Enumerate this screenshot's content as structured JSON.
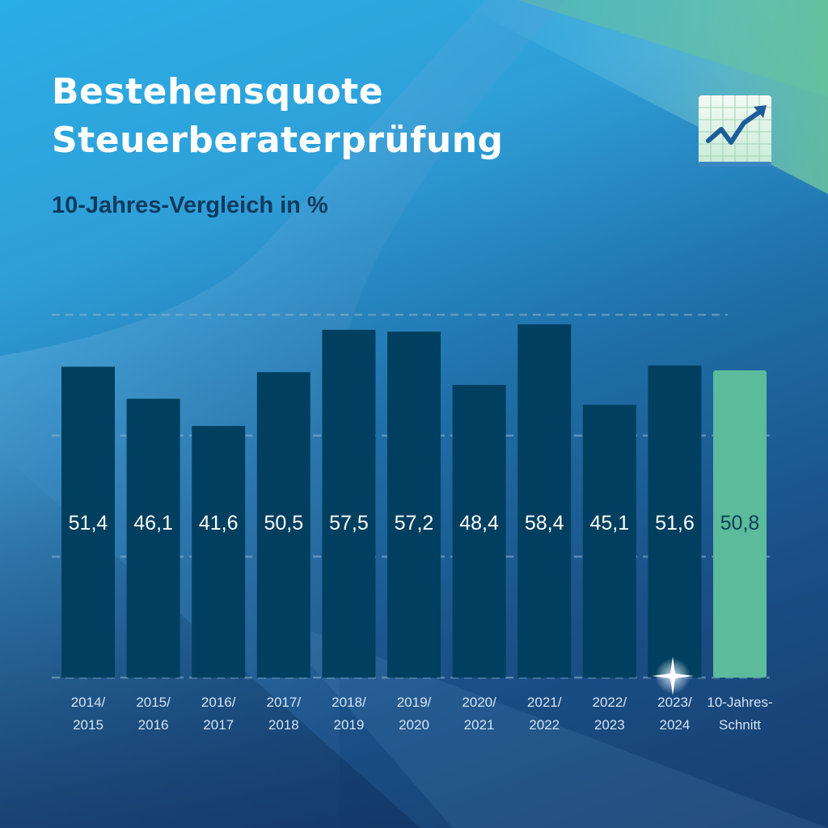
{
  "title_lines": [
    "Bestehensquote",
    "Steuerberaterprüfung"
  ],
  "subtitle": "10-Jahres-Vergleich in %",
  "icon": "trending-chart-icon",
  "colors": {
    "bar": "#003f5f",
    "average_bar": "#5bbb9b",
    "value_label": "#ffffff",
    "average_label": "#0b3d5a",
    "gridline": "#8fb3cf"
  },
  "chart_data": {
    "type": "bar",
    "categories": [
      [
        "2014/",
        "2015"
      ],
      [
        "2015/",
        "2016"
      ],
      [
        "2016/",
        "2017"
      ],
      [
        "2017/",
        "2018"
      ],
      [
        "2018/",
        "2019"
      ],
      [
        "2019/",
        "2020"
      ],
      [
        "2020/",
        "2021"
      ],
      [
        "2021/",
        "2022"
      ],
      [
        "2022/",
        "2023"
      ],
      [
        "2023/",
        "2024"
      ],
      [
        "10-Jahres-",
        "Schnitt"
      ]
    ],
    "values": [
      51.4,
      46.1,
      41.6,
      50.5,
      57.5,
      57.2,
      48.4,
      58.4,
      45.1,
      51.6,
      50.8
    ],
    "value_labels": [
      "51,4",
      "46,1",
      "41,6",
      "50,5",
      "57,5",
      "57,2",
      "48,4",
      "58,4",
      "45,1",
      "51,6",
      "50,8"
    ],
    "highlight_index": 10,
    "grid": true
  }
}
